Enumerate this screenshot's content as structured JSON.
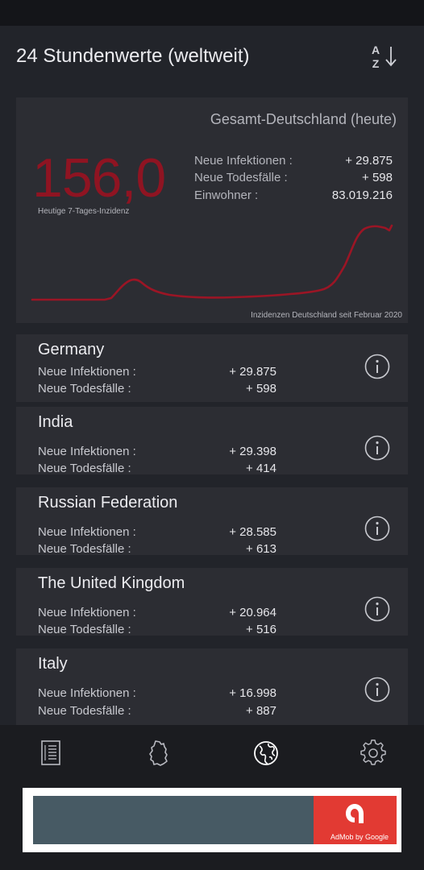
{
  "header": {
    "title": "24 Stundenwerte (weltweit)",
    "sort_az": "A\nZ",
    "sort_icon": "sort-az-arrow-icon"
  },
  "summary": {
    "title": "Gesamt-Deutschland (heute)",
    "incidence_value": "156,0",
    "incidence_caption": "Heutige 7-Tages-Inzidenz",
    "stats": [
      {
        "label": "Neue Infektionen :",
        "value": "+ 29.875"
      },
      {
        "label": "Neue Todesfälle :",
        "value": "+ 598"
      },
      {
        "label": "Einwohner :",
        "value": "83.019.216"
      }
    ],
    "chart_caption": "Inzidenzen Deutschland seit Februar 2020",
    "chart_color": "#9b1525"
  },
  "countries": [
    {
      "name": "Germany",
      "infections_label": "Neue Infektionen :",
      "infections": "+ 29.875",
      "deaths_label": "Neue Todesfälle :",
      "deaths": "+ 598"
    },
    {
      "name": "India",
      "infections_label": "Neue Infektionen :",
      "infections": "+ 29.398",
      "deaths_label": "Neue Todesfälle :",
      "deaths": "+ 414"
    },
    {
      "name": "Russian Federation",
      "infections_label": "Neue Infektionen :",
      "infections": "+ 28.585",
      "deaths_label": "Neue Todesfälle :",
      "deaths": "+ 613"
    },
    {
      "name": "The United Kingdom",
      "infections_label": "Neue Infektionen :",
      "infections": "+ 20.964",
      "deaths_label": "Neue Todesfälle :",
      "deaths": "+ 516"
    },
    {
      "name": "Italy",
      "infections_label": "Neue Infektionen :",
      "infections": "+ 16.998",
      "deaths_label": "Neue Todesfälle :",
      "deaths": "+ 887"
    }
  ],
  "bottom_nav": [
    {
      "icon": "document-list-icon"
    },
    {
      "icon": "germany-map-icon"
    },
    {
      "icon": "globe-icon",
      "active": true
    },
    {
      "icon": "gear-icon"
    }
  ],
  "ad": {
    "badge": "AdMob by Google",
    "accent": "#e23a33"
  }
}
